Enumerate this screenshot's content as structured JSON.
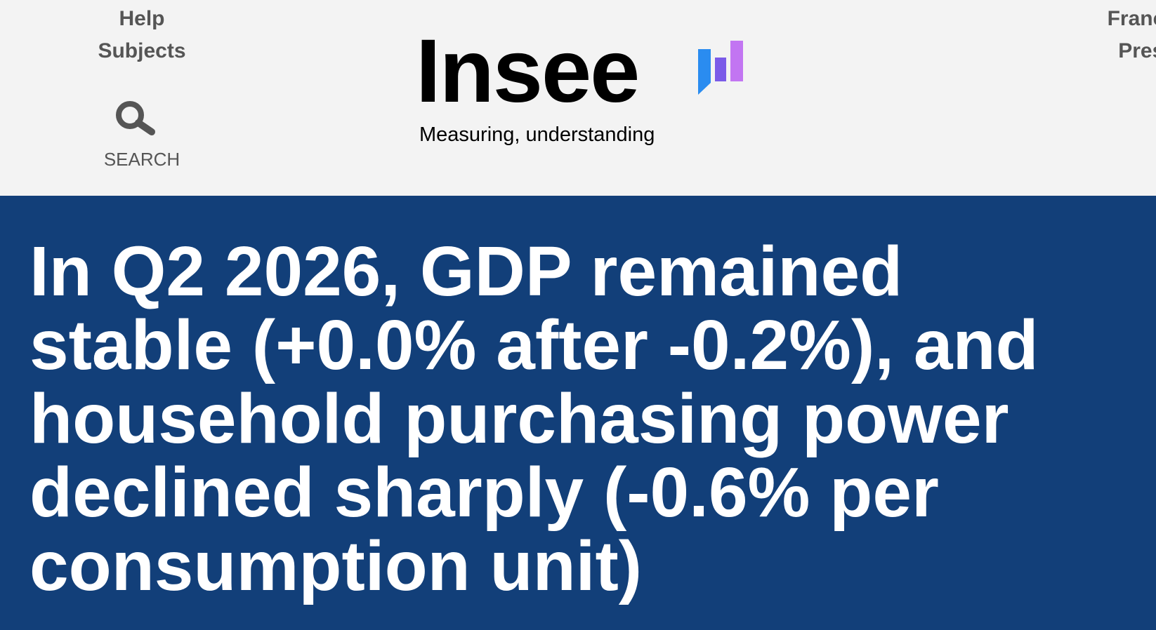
{
  "header": {
    "nav_left": [
      "Help",
      "Subjects"
    ],
    "search_label": "SEARCH",
    "logo": {
      "name": "Insee",
      "tagline": "Measuring, understanding"
    },
    "nav_right": [
      "Français",
      "Press"
    ]
  },
  "headline": {
    "lines": [
      "In Q2 2026, GDP remained",
      "stable (+0.0% after -0.2%), and",
      "household purchasing power",
      "declined sharply (-0.6% per",
      "consumption unit)"
    ]
  }
}
